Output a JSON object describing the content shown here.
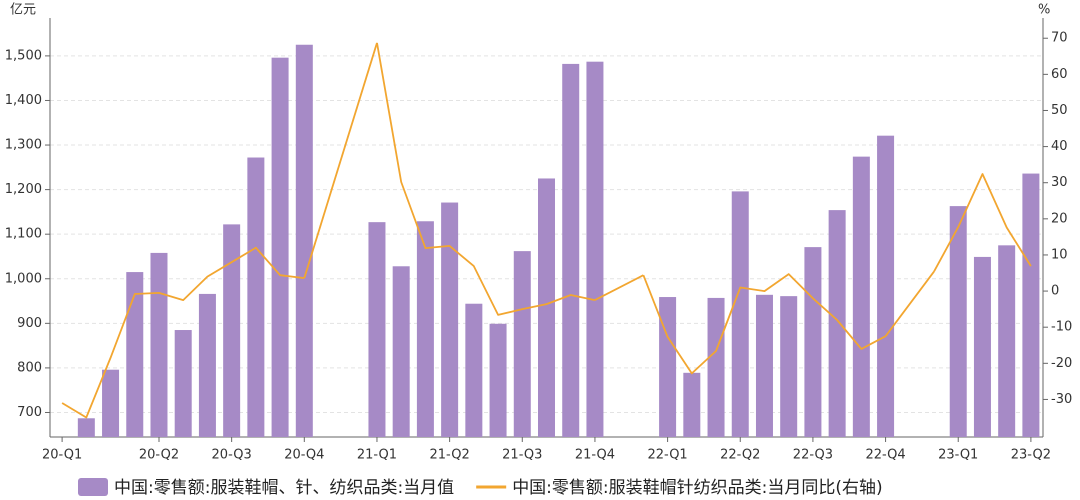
{
  "chart_data": {
    "type": "bar_line",
    "y_unit": "亿元",
    "y2_unit": "%",
    "categories": [
      "20-Q1",
      null,
      null,
      null,
      "20-Q2",
      null,
      null,
      "20-Q3",
      null,
      null,
      "20-Q4",
      null,
      null,
      "21-Q1",
      null,
      null,
      "21-Q2",
      null,
      null,
      "21-Q3",
      null,
      null,
      "21-Q4",
      null,
      null,
      "22-Q1",
      null,
      null,
      "22-Q2",
      null,
      null,
      "22-Q3",
      null,
      null,
      "22-Q4",
      null,
      null,
      "23-Q1",
      null,
      null,
      "23-Q2"
    ],
    "series": [
      {
        "name": "中国:零售额:服装鞋帽、针、纺织品类:当月值",
        "type": "bar",
        "color": "#a68ac6",
        "values": [
          null,
          687,
          796,
          1015,
          1058,
          885,
          966,
          1122,
          1272,
          1496,
          1525,
          null,
          null,
          1127,
          1028,
          1129,
          1171,
          944,
          899,
          1062,
          1225,
          1482,
          1487,
          null,
          null,
          959,
          789,
          957,
          1196,
          964,
          961,
          1071,
          1154,
          1274,
          1321,
          null,
          null,
          1163,
          1049,
          1075,
          1236
        ]
      },
      {
        "name": "中国:零售额:服装鞋帽针纺织品类:当月同比(右轴)",
        "type": "line",
        "axis": "y2",
        "color": "#f2a630",
        "values": [
          -31,
          -35,
          -18.5,
          -0.8,
          -0.5,
          -2.5,
          4,
          8,
          12,
          4.4,
          3.6,
          null,
          null,
          68.7,
          30.2,
          11.9,
          12.5,
          6.9,
          -6.6,
          -5,
          -3.6,
          -1.1,
          -2.5,
          null,
          4.4,
          -12.7,
          -22.8,
          -16.6,
          1,
          0,
          4.7,
          -2,
          -8,
          -16,
          -12.5,
          null,
          5.4,
          17.7,
          32.4,
          17.6,
          6.9
        ]
      }
    ],
    "connect_gaps": true,
    "ylim": [
      645,
      1585
    ],
    "yticks": [
      700,
      800,
      900,
      {
        "value": 1000,
        "label": "1,000"
      },
      {
        "value": 1100,
        "label": "1,100"
      },
      {
        "value": 1200,
        "label": "1,200"
      },
      {
        "value": 1300,
        "label": "1,300"
      },
      {
        "value": 1400,
        "label": "1,400"
      },
      {
        "value": 1500,
        "label": "1,500"
      }
    ],
    "y2lim": [
      -40.4,
      75.6
    ],
    "y2ticks": [
      -30,
      -20,
      -10,
      0,
      10,
      20,
      30,
      40,
      50,
      60,
      70
    ],
    "grid": true
  }
}
